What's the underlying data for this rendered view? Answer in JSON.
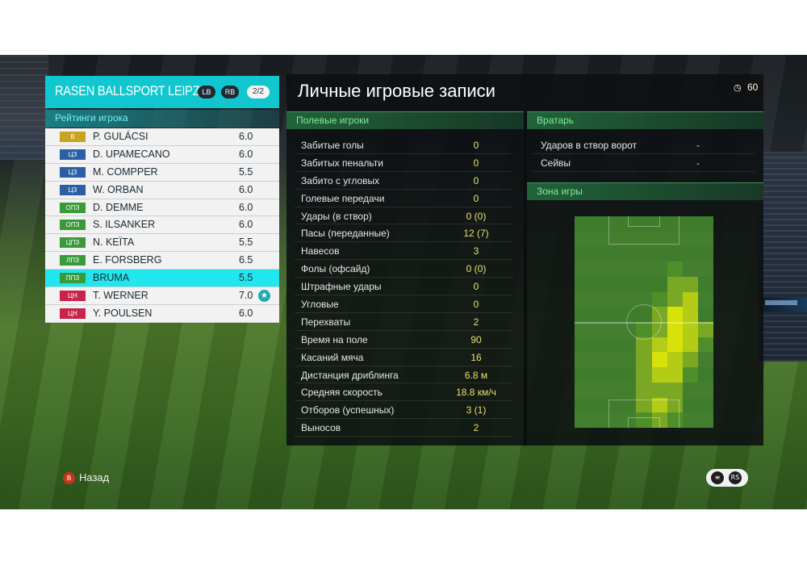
{
  "team": {
    "name": "RASEN BALLSPORT LEIPZIG",
    "lb": "LB",
    "rb": "RB",
    "page": "2/2",
    "accent": "#11c7cf"
  },
  "ratings_title": "Рейтинги игрока",
  "players": [
    {
      "pos": "В",
      "pos_color": "#c8a421",
      "name": "P. GULÁCSI",
      "rating": "6.0"
    },
    {
      "pos": "ЦЗ",
      "pos_color": "#2a5fa6",
      "name": "D. UPAMECANO",
      "rating": "6.0"
    },
    {
      "pos": "ЦЗ",
      "pos_color": "#2a5fa6",
      "name": "M. COMPPER",
      "rating": "5.5"
    },
    {
      "pos": "ЦЗ",
      "pos_color": "#2a5fa6",
      "name": "W. ORBAN",
      "rating": "6.0"
    },
    {
      "pos": "ОПЗ",
      "pos_color": "#3a9a3a",
      "name": "D. DEMME",
      "rating": "6.0"
    },
    {
      "pos": "ОПЗ",
      "pos_color": "#3a9a3a",
      "name": "S. ILSANKER",
      "rating": "6.0"
    },
    {
      "pos": "ЦПЗ",
      "pos_color": "#3a9a3a",
      "name": "N. KEÏTA",
      "rating": "5.5"
    },
    {
      "pos": "ЛПЗ",
      "pos_color": "#3a9a3a",
      "name": "E. FORSBERG",
      "rating": "6.5"
    },
    {
      "pos": "ППЗ",
      "pos_color": "#3a9a3a",
      "name": "BRUMA",
      "rating": "5.5",
      "selected": true
    },
    {
      "pos": "ЦН",
      "pos_color": "#c8244a",
      "name": "T. WERNER",
      "rating": "7.0",
      "star": true
    },
    {
      "pos": "ЦН",
      "pos_color": "#c8244a",
      "name": "Y. POULSEN",
      "rating": "6.0"
    }
  ],
  "main": {
    "title": "Личные игровые записи",
    "timer": "60",
    "field_head": "Полевые игроки",
    "gk_head": "Вратарь",
    "zone_head": "Зона игры",
    "stats": [
      {
        "label": "Забитые голы",
        "value": "0"
      },
      {
        "label": "Забитых пенальти",
        "value": "0"
      },
      {
        "label": "Забито с угловых",
        "value": "0"
      },
      {
        "label": "Голевые передачи",
        "value": "0"
      },
      {
        "label": "Удары (в створ)",
        "value": "0 (0)"
      },
      {
        "label": "Пасы (переданные)",
        "value": "12 (7)"
      },
      {
        "label": "Навесов",
        "value": "3"
      },
      {
        "label": "Фолы (офсайд)",
        "value": "0 (0)"
      },
      {
        "label": "Штрафные удары",
        "value": "0"
      },
      {
        "label": "Угловые",
        "value": "0"
      },
      {
        "label": "Перехваты",
        "value": "2"
      },
      {
        "label": "Время на поле",
        "value": "90"
      },
      {
        "label": "Касаний мяча",
        "value": "16"
      },
      {
        "label": "Дистанция дриблинга",
        "value": "6.8 м"
      },
      {
        "label": "Средняя скорость",
        "value": "18.8 км/ч"
      },
      {
        "label": "Отборов (успешных)",
        "value": "3 (1)"
      },
      {
        "label": "Выносов",
        "value": "2"
      }
    ],
    "gk_stats": [
      {
        "label": "Ударов в створ ворот",
        "value": "-"
      },
      {
        "label": "Сейвы",
        "value": "-"
      }
    ]
  },
  "heatmap": {
    "cols": 9,
    "rows": 14,
    "colors": {
      "0": "#3f7d2d",
      "1": "#4f8f2a",
      "2": "#7ba824",
      "3": "#b4cc16",
      "4": "#d7e20a"
    },
    "grid": [
      "000000000",
      "000000000",
      "000000000",
      "000000100",
      "000000220",
      "000001230",
      "000002430",
      "000012432",
      "000023431",
      "000024320",
      "000023310",
      "000022200",
      "000023200",
      "000012100"
    ]
  },
  "footer": {
    "back_label": "Назад",
    "back_btn": "B",
    "ctrl1": "≡",
    "ctrl2": "RS"
  }
}
